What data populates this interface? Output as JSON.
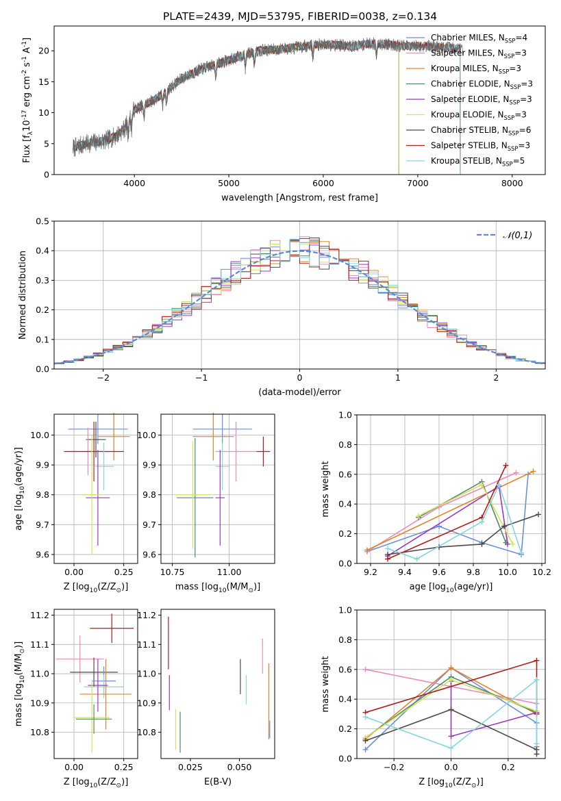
{
  "figure": {
    "title": "PLATE=2439, MJD=53795, FIBERID=0038, z=0.134"
  },
  "chart_data": [
    {
      "id": "spectrum",
      "type": "line",
      "xlabel": "wavelength [Angstrom, rest frame]",
      "ylabel": "Flux [f$_\\lambda$10$^{-17}$ erg cm$^{-2}$ s$^{-1}$ A$^{-1}$]",
      "xlim": [
        3150,
        8350
      ],
      "ylim": [
        0,
        24
      ],
      "xticks": [
        4000,
        5000,
        6000,
        7000,
        8000
      ],
      "yticks": [
        0,
        5,
        10,
        15,
        20
      ],
      "grid": false,
      "legend_position": "top-right",
      "continuum": {
        "x": [
          3350,
          3500,
          3700,
          3800,
          3900,
          4000,
          4200,
          4300,
          4500,
          4700,
          4900,
          5100,
          5300,
          5500,
          5700,
          5900,
          6100,
          6300,
          6500,
          6700,
          6900,
          7100,
          7300,
          7500
        ],
        "y": [
          4.3,
          5.0,
          5.5,
          6.2,
          7.5,
          10.5,
          12.0,
          13.0,
          15.5,
          17.0,
          18.0,
          19.0,
          20.0,
          20.2,
          20.5,
          21.0,
          21.0,
          20.7,
          21.2,
          21.0,
          20.7,
          20.8,
          20.5,
          20.3
        ]
      },
      "series": [
        {
          "name": "Chabrier MILES, N$_{SSP}$=4",
          "color": "#6a8fd8",
          "xmax": 7450
        },
        {
          "name": "Salpeter MILES, N$_{SSP}$=3",
          "color": "#e98bbd",
          "xmax": 7450
        },
        {
          "name": "Kroupa MILES, N$_{SSP}$=3",
          "color": "#e0832a",
          "xmax": 7450
        },
        {
          "name": "Chabrier ELODIE, N$_{SSP}$=3",
          "color": "#4f8a6a",
          "xmax": 6800
        },
        {
          "name": "Salpeter ELODIE, N$_{SSP}$=3",
          "color": "#9b36c0",
          "xmax": 6800
        },
        {
          "name": "Kroupa ELODIE, N$_{SSP}$=3",
          "color": "#d4e25a",
          "xmax": 6800
        },
        {
          "name": "Chabrier STELIB, N$_{SSP}$=6",
          "color": "#4a4a4a",
          "xmax": 7450
        },
        {
          "name": "Salpeter STELIB, N$_{SSP}$=3",
          "color": "#b01c1c",
          "xmax": 7450
        },
        {
          "name": "Kroupa STELIB, N$_{SSP}$=5",
          "color": "#84d6e0",
          "xmax": 7450
        }
      ],
      "data_color": "#666666"
    },
    {
      "id": "residuals",
      "type": "line",
      "xlabel": "(data-model)/error",
      "ylabel": "Normed distribution",
      "xlim": [
        -2.5,
        2.5
      ],
      "ylim": [
        0,
        0.5
      ],
      "xticks": [
        -2,
        -1,
        0,
        1,
        2
      ],
      "yticks": [
        0.0,
        0.1,
        0.2,
        0.3,
        0.4,
        0.5
      ],
      "grid": true,
      "legend_position": "top-right",
      "gaussian": {
        "label": "$\\mathcal{N}(0,1)$",
        "color": "#5b87d6"
      },
      "bin_width": 0.1
    },
    {
      "id": "z_age",
      "type": "scatter",
      "xlabel": "Z [log$_{10}$(Z/Z$_\\odot$)]",
      "ylabel": "age  [log$_{10}$(age/yr)]",
      "xlim": [
        -0.1,
        0.32
      ],
      "ylim": [
        9.57,
        10.07
      ],
      "xticks": [
        0.0,
        0.25
      ],
      "yticks": [
        9.6,
        9.7,
        9.8,
        9.9,
        10.0
      ],
      "grid": true,
      "points": [
        {
          "x": 0.12,
          "y": 10.02,
          "xerr": 0.15,
          "yerr": 0.05,
          "color": "#6a8fd8"
        },
        {
          "x": 0.2,
          "y": 9.995,
          "xerr": 0.08,
          "yerr": 0.08,
          "color": "#e0832a"
        },
        {
          "x": 0.11,
          "y": 9.985,
          "xerr": 0.05,
          "yerr": 0.06,
          "color": "#4a4a4a"
        },
        {
          "x": 0.07,
          "y": 9.945,
          "xerr": 0.11,
          "yerr": 0.08,
          "color": "#e98bbd"
        },
        {
          "x": 0.1,
          "y": 9.945,
          "xerr": 0.15,
          "yerr": 0.1,
          "color": "#b01c1c"
        },
        {
          "x": 0.15,
          "y": 9.895,
          "xerr": 0.05,
          "yerr": 0.08,
          "color": "#84d6e0"
        },
        {
          "x": 0.12,
          "y": 9.79,
          "xerr": 0.06,
          "yerr": 0.16,
          "color": "#9b36c0"
        },
        {
          "x": 0.09,
          "y": 9.8,
          "xerr": 0.05,
          "yerr": 0.2,
          "color": "#d4e25a"
        }
      ]
    },
    {
      "id": "mass_age",
      "type": "scatter",
      "xlabel": "mass [log$_{10}$(M/M$_\\odot$)]",
      "ylabel": "",
      "xlim": [
        10.7,
        11.2
      ],
      "ylim": [
        9.57,
        10.07
      ],
      "xticks": [
        10.75,
        11.0
      ],
      "yticks": [
        9.6,
        9.7,
        9.8,
        9.9,
        10.0
      ],
      "grid": true,
      "points": [
        {
          "x": 10.97,
          "y": 10.02,
          "xerr": 0.13,
          "yerr": 0.05,
          "color": "#6a8fd8"
        },
        {
          "x": 10.93,
          "y": 9.995,
          "xerr": 0.09,
          "yerr": 0.08,
          "color": "#e0832a"
        },
        {
          "x": 11.15,
          "y": 9.945,
          "xerr": 0.03,
          "yerr": 0.05,
          "color": "#b01c1c"
        },
        {
          "x": 11.03,
          "y": 9.945,
          "xerr": 0.09,
          "yerr": 0.1,
          "color": "#e98bbd"
        },
        {
          "x": 10.97,
          "y": 9.895,
          "xerr": 0.03,
          "yerr": 0.08,
          "color": "#84d6e0"
        },
        {
          "x": 10.96,
          "y": 9.79,
          "xerr": 0.02,
          "yerr": 0.16,
          "color": "#9b36c0"
        },
        {
          "x": 10.85,
          "y": 9.79,
          "xerr": 0.08,
          "yerr": 0.2,
          "color": "#4f8a6a"
        },
        {
          "x": 10.84,
          "y": 9.8,
          "xerr": 0.08,
          "yerr": 0.18,
          "color": "#d4e25a"
        }
      ]
    },
    {
      "id": "age_weight",
      "type": "line",
      "xlabel": "age  [log$_{10}$(age/yr)]",
      "ylabel": "mass weight",
      "xlim": [
        9.12,
        10.22
      ],
      "ylim": [
        0,
        1
      ],
      "xticks": [
        9.2,
        9.4,
        9.6,
        9.8,
        10.0,
        10.2
      ],
      "yticks": [
        0.0,
        0.2,
        0.4,
        0.6,
        0.8,
        1.0
      ],
      "grid": true,
      "series": [
        {
          "color": "#6a8fd8",
          "x": [
            9.18,
            9.6,
            9.85,
            10.08,
            10.12
          ],
          "y": [
            0.08,
            0.25,
            0.14,
            0.06,
            0.6
          ]
        },
        {
          "color": "#e98bbd",
          "x": [
            9.18,
            9.6,
            10.05
          ],
          "y": [
            0.08,
            0.38,
            0.61
          ]
        },
        {
          "color": "#e0832a",
          "x": [
            9.18,
            10.15
          ],
          "y": [
            0.09,
            0.62
          ]
        },
        {
          "color": "#4f8a6a",
          "x": [
            9.48,
            9.85,
            9.99
          ],
          "y": [
            0.31,
            0.55,
            0.14
          ]
        },
        {
          "color": "#9b36c0",
          "x": [
            9.3,
            9.95,
            10.0
          ],
          "y": [
            0.05,
            0.52,
            0.13
          ]
        },
        {
          "color": "#d4e25a",
          "x": [
            9.48,
            9.85,
            10.03
          ],
          "y": [
            0.32,
            0.53,
            0.13
          ]
        },
        {
          "color": "#4a4a4a",
          "x": [
            9.3,
            9.6,
            9.85,
            9.98,
            10.18
          ],
          "y": [
            0.06,
            0.11,
            0.13,
            0.25,
            0.33
          ]
        },
        {
          "color": "#b01c1c",
          "x": [
            9.3,
            9.85,
            9.99
          ],
          "y": [
            0.03,
            0.31,
            0.66
          ]
        },
        {
          "color": "#84d6e0",
          "x": [
            9.3,
            9.47,
            9.85,
            9.95,
            10.08
          ],
          "y": [
            0.1,
            0.03,
            0.28,
            0.53,
            0.07
          ]
        }
      ]
    },
    {
      "id": "z_mass",
      "type": "scatter",
      "xlabel": "Z [log$_{10}$(Z/Z$_\\odot$)]",
      "ylabel": "mass [log$_{10}$(M/M$_\\odot$)]",
      "xlim": [
        -0.1,
        0.32
      ],
      "ylim": [
        10.71,
        11.22
      ],
      "xticks": [
        0.0,
        0.25
      ],
      "yticks": [
        10.8,
        10.9,
        11.0,
        11.1,
        11.2
      ],
      "grid": true,
      "points": [
        {
          "x": 0.19,
          "y": 11.155,
          "xerr": 0.11,
          "yerr": 0.05,
          "color": "#b01c1c"
        },
        {
          "x": 0.03,
          "y": 11.05,
          "xerr": 0.12,
          "yerr": 0.08,
          "color": "#e98bbd"
        },
        {
          "x": 0.1,
          "y": 11.005,
          "xerr": 0.12,
          "yerr": 0.05,
          "color": "#4a4a4a"
        },
        {
          "x": 0.15,
          "y": 10.975,
          "xerr": 0.06,
          "yerr": 0.05,
          "color": "#6a8fd8"
        },
        {
          "x": 0.15,
          "y": 10.955,
          "xerr": 0.1,
          "yerr": 0.04,
          "color": "#84d6e0"
        },
        {
          "x": 0.16,
          "y": 10.93,
          "xerr": 0.13,
          "yerr": 0.12,
          "color": "#e0832a"
        },
        {
          "x": 0.12,
          "y": 10.96,
          "xerr": 0.05,
          "yerr": 0.09,
          "color": "#9b36c0"
        },
        {
          "x": 0.09,
          "y": 10.85,
          "xerr": 0.09,
          "yerr": 0.12,
          "color": "#d4e25a"
        },
        {
          "x": 0.1,
          "y": 10.845,
          "xerr": 0.09,
          "yerr": 0.05,
          "color": "#4f8a6a"
        }
      ]
    },
    {
      "id": "ebv_mass",
      "type": "scatter",
      "xlabel": "E(B-V)",
      "ylabel": "",
      "xlim": [
        0.01,
        0.068
      ],
      "ylim": [
        10.71,
        11.22
      ],
      "xticks": [
        0.025,
        0.05
      ],
      "yticks": [
        10.8,
        10.9,
        11.0,
        11.1,
        11.2
      ],
      "grid": false,
      "points": [
        {
          "x": 0.0138,
          "y": 11.105,
          "xerr": 0,
          "yerr": 0.09,
          "color": "#b01c1c"
        },
        {
          "x": 0.0143,
          "y": 10.935,
          "xerr": 0,
          "yerr": 0.06,
          "color": "#9b36c0"
        },
        {
          "x": 0.0175,
          "y": 10.81,
          "xerr": 0,
          "yerr": 0.07,
          "color": "#d4e25a"
        },
        {
          "x": 0.0198,
          "y": 10.8,
          "xerr": 0,
          "yerr": 0.07,
          "color": "#4f8a6a"
        },
        {
          "x": 0.0505,
          "y": 10.99,
          "xerr": 0,
          "yerr": 0.06,
          "color": "#4a4a4a"
        },
        {
          "x": 0.0535,
          "y": 10.945,
          "xerr": 0,
          "yerr": 0.05,
          "color": "#84d6e0"
        },
        {
          "x": 0.0618,
          "y": 11.06,
          "xerr": 0,
          "yerr": 0.06,
          "color": "#e98bbd"
        },
        {
          "x": 0.065,
          "y": 10.905,
          "xerr": 0,
          "yerr": 0.13,
          "color": "#e0832a"
        },
        {
          "x": 0.0655,
          "y": 10.81,
          "xerr": 0,
          "yerr": 0.03,
          "color": "#6a8fd8"
        }
      ]
    },
    {
      "id": "z_weight",
      "type": "line",
      "xlabel": "Z [log$_{10}$(Z/Z$_\\odot$)]",
      "ylabel": "mass weight",
      "xlim": [
        -0.33,
        0.33
      ],
      "ylim": [
        0,
        1
      ],
      "xticks": [
        -0.2,
        0.0,
        0.2
      ],
      "yticks": [
        0.0,
        0.2,
        0.4,
        0.6,
        0.8,
        1.0
      ],
      "grid": true,
      "series": [
        {
          "color": "#6a8fd8",
          "x": [
            -0.3,
            0.0,
            0.3,
            0.3
          ],
          "y": [
            0.06,
            0.61,
            0.24,
            0.08
          ]
        },
        {
          "color": "#e98bbd",
          "x": [
            -0.3,
            0.3
          ],
          "y": [
            0.6,
            0.37
          ]
        },
        {
          "color": "#e0832a",
          "x": [
            -0.3,
            0.0,
            0.3
          ],
          "y": [
            0.13,
            0.61,
            0.3
          ]
        },
        {
          "color": "#4f8a6a",
          "x": [
            -0.3,
            0.0,
            0.3
          ],
          "y": [
            0.14,
            0.55,
            0.31
          ]
        },
        {
          "color": "#9b36c0",
          "x": [
            0.0,
            0.0,
            0.3
          ],
          "y": [
            0.52,
            0.15,
            0.31
          ]
        },
        {
          "color": "#d4e25a",
          "x": [
            -0.3,
            0.0,
            0.3
          ],
          "y": [
            0.14,
            0.53,
            0.32
          ]
        },
        {
          "color": "#4a4a4a",
          "x": [
            -0.3,
            0.0,
            0.3,
            0.3
          ],
          "y": [
            0.12,
            0.33,
            0.06,
            0.03
          ]
        },
        {
          "color": "#b01c1c",
          "x": [
            -0.3,
            0.3,
            0.3
          ],
          "y": [
            0.31,
            0.66,
            0.3
          ]
        },
        {
          "color": "#84d6e0",
          "x": [
            -0.3,
            0.0,
            0.3,
            0.3
          ],
          "y": [
            0.28,
            0.07,
            0.53,
            0.1
          ]
        }
      ]
    }
  ]
}
